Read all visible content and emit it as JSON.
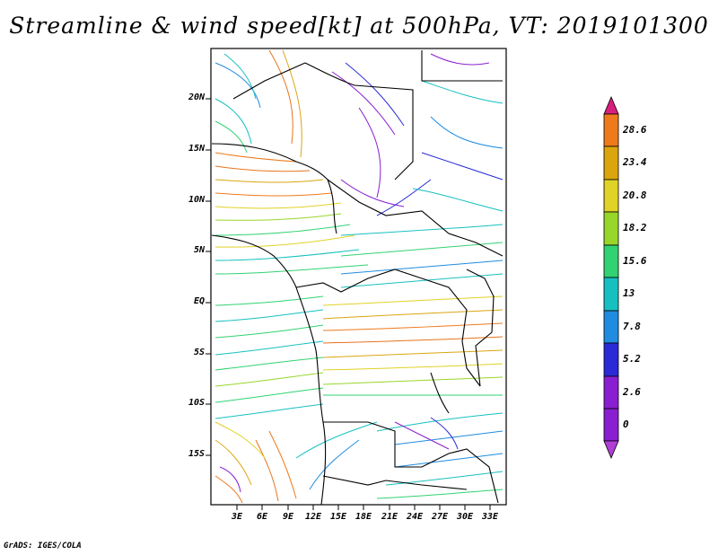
{
  "title": "Streamline & wind speed[kt] at 500hPa, VT: 2019101300",
  "credit": "GrADS: IGES/COLA",
  "y_ticks": [
    "20N",
    "15N",
    "10N",
    "5N",
    "EQ",
    "5S",
    "10S",
    "15S"
  ],
  "x_ticks": [
    "3E",
    "6E",
    "9E",
    "12E",
    "15E",
    "18E",
    "21E",
    "24E",
    "27E",
    "30E",
    "33E"
  ],
  "colorbar": {
    "levels": [
      "28.6",
      "23.4",
      "20.8",
      "18.2",
      "15.6",
      "13",
      "7.8",
      "5.2",
      "2.6",
      "0"
    ],
    "colors": [
      "#d81e7e",
      "#ee7a1c",
      "#dba50f",
      "#e0d226",
      "#98d62a",
      "#32d273",
      "#17c0c0",
      "#1f8ce0",
      "#2a2ad6",
      "#8a1fd1",
      "#b03fd6"
    ]
  }
}
